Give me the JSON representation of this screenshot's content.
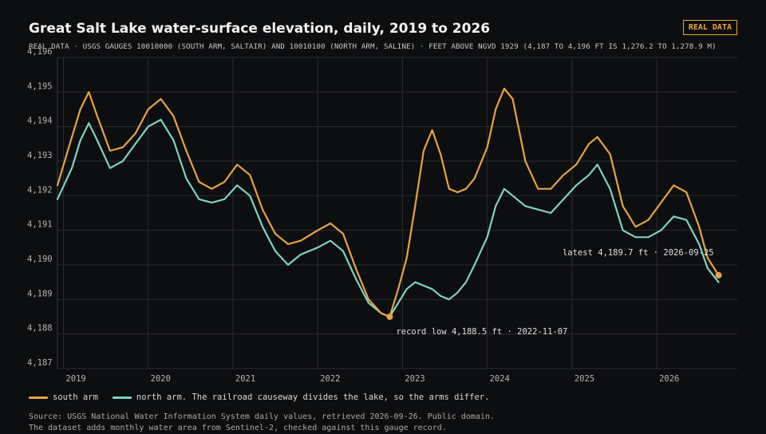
{
  "header": {
    "title": "Great Salt Lake water-surface elevation, daily, 2019 to 2026",
    "subtitle": "REAL DATA · USGS GAUGES 10010000 (SOUTH ARM, SALTAIR) AND 10010100 (NORTH ARM, SALINE) · FEET ABOVE NGVD 1929 (4,187 TO 4,196 FT IS 1,276.2 TO 1,278.9 M)",
    "badge": "REAL DATA"
  },
  "legend": {
    "south_label": "south arm",
    "north_label": "north arm. The railroad causeway divides the lake, so the arms differ."
  },
  "footer": {
    "source_line1": "Source: USGS National Water Information System daily values, retrieved 2026-09-26. Public domain.",
    "source_line2": "The dataset adds monthly water area from Sentinel-2, checked against this gauge record."
  },
  "colors": {
    "south": "#e7a443",
    "north": "#7fd3c3",
    "grid": "#2a2c30",
    "axis_text": "#b5b5b5",
    "annotation_text": "#e0e0e0"
  },
  "chart_data": {
    "type": "line",
    "xlabel": "",
    "ylabel": "",
    "xlim": [
      2018.93,
      2026.95
    ],
    "ylim": [
      4187,
      4196
    ],
    "x_ticks": [
      2019,
      2020,
      2021,
      2022,
      2023,
      2024,
      2025,
      2026
    ],
    "x_tick_labels": [
      "2019",
      "2020",
      "2021",
      "2022",
      "2023",
      "2024",
      "2025",
      "2026"
    ],
    "y_ticks": [
      4187,
      4188,
      4189,
      4190,
      4191,
      4192,
      4193,
      4194,
      4195,
      4196
    ],
    "y_tick_labels": [
      "4,187",
      "4,188",
      "4,189",
      "4,190",
      "4,191",
      "4,192",
      "4,193",
      "4,194",
      "4,195",
      "4,196"
    ],
    "grid": true,
    "legend_position": "bottom-left",
    "series": [
      {
        "key": "south",
        "x": [
          2018.93,
          2019.1,
          2019.2,
          2019.3,
          2019.4,
          2019.55,
          2019.7,
          2019.85,
          2020.0,
          2020.15,
          2020.3,
          2020.45,
          2020.6,
          2020.75,
          2020.9,
          2021.05,
          2021.2,
          2021.35,
          2021.5,
          2021.65,
          2021.8,
          2022.0,
          2022.15,
          2022.3,
          2022.45,
          2022.6,
          2022.75,
          2022.85,
          2022.95,
          2023.05,
          2023.15,
          2023.25,
          2023.35,
          2023.45,
          2023.55,
          2023.65,
          2023.75,
          2023.85,
          2024.0,
          2024.1,
          2024.2,
          2024.3,
          2024.45,
          2024.6,
          2024.75,
          2024.9,
          2025.05,
          2025.2,
          2025.3,
          2025.45,
          2025.6,
          2025.75,
          2025.9,
          2026.05,
          2026.2,
          2026.35,
          2026.5,
          2026.6,
          2026.73
        ],
        "y": [
          4192.3,
          4193.7,
          4194.5,
          4195.0,
          4194.3,
          4193.3,
          4193.4,
          4193.8,
          4194.5,
          4194.8,
          4194.3,
          4193.3,
          4192.4,
          4192.2,
          4192.4,
          4192.9,
          4192.6,
          4191.6,
          4190.9,
          4190.6,
          4190.7,
          4191.0,
          4191.2,
          4190.9,
          4189.9,
          4189.0,
          4188.6,
          4188.5,
          4189.3,
          4190.2,
          4191.7,
          4193.3,
          4193.9,
          4193.2,
          4192.2,
          4192.1,
          4192.2,
          4192.5,
          4193.4,
          4194.5,
          4195.1,
          4194.8,
          4193.0,
          4192.2,
          4192.2,
          4192.6,
          4192.9,
          4193.5,
          4193.7,
          4193.2,
          4191.7,
          4191.1,
          4191.3,
          4191.8,
          4192.3,
          4192.1,
          4191.1,
          4190.2,
          4189.7
        ]
      },
      {
        "key": "north",
        "x": [
          2018.93,
          2019.1,
          2019.2,
          2019.3,
          2019.4,
          2019.55,
          2019.7,
          2019.85,
          2020.0,
          2020.15,
          2020.3,
          2020.45,
          2020.6,
          2020.75,
          2020.9,
          2021.05,
          2021.2,
          2021.35,
          2021.5,
          2021.65,
          2021.8,
          2022.0,
          2022.15,
          2022.3,
          2022.45,
          2022.6,
          2022.75,
          2022.85,
          2022.95,
          2023.05,
          2023.15,
          2023.25,
          2023.35,
          2023.45,
          2023.55,
          2023.65,
          2023.75,
          2023.85,
          2024.0,
          2024.1,
          2024.2,
          2024.3,
          2024.45,
          2024.6,
          2024.75,
          2024.9,
          2025.05,
          2025.2,
          2025.3,
          2025.45,
          2025.6,
          2025.75,
          2025.9,
          2026.05,
          2026.2,
          2026.35,
          2026.5,
          2026.6,
          2026.73
        ],
        "y": [
          4191.9,
          4192.8,
          4193.6,
          4194.1,
          4193.6,
          4192.8,
          4193.0,
          4193.5,
          4194.0,
          4194.2,
          4193.6,
          4192.5,
          4191.9,
          4191.8,
          4191.9,
          4192.3,
          4192.0,
          4191.1,
          4190.4,
          4190.0,
          4190.3,
          4190.5,
          4190.7,
          4190.4,
          4189.6,
          4188.9,
          4188.6,
          4188.5,
          4188.9,
          4189.3,
          4189.5,
          4189.4,
          4189.3,
          4189.1,
          4189.0,
          4189.2,
          4189.5,
          4190.0,
          4190.8,
          4191.7,
          4192.2,
          4192.0,
          4191.7,
          4191.6,
          4191.5,
          4191.9,
          4192.3,
          4192.6,
          4192.9,
          4192.2,
          4191.0,
          4190.8,
          4190.8,
          4191.0,
          4191.4,
          4191.3,
          4190.6,
          4189.9,
          4189.5
        ]
      }
    ],
    "annotations": [
      {
        "key": "record",
        "text": "record low 4,188.5 ft · 2022-11-07",
        "x": 2022.85,
        "y": 4188.5
      },
      {
        "key": "latest",
        "text": "latest 4,189.7 ft · 2026-09-25",
        "x": 2026.73,
        "y": 4189.7
      }
    ]
  }
}
